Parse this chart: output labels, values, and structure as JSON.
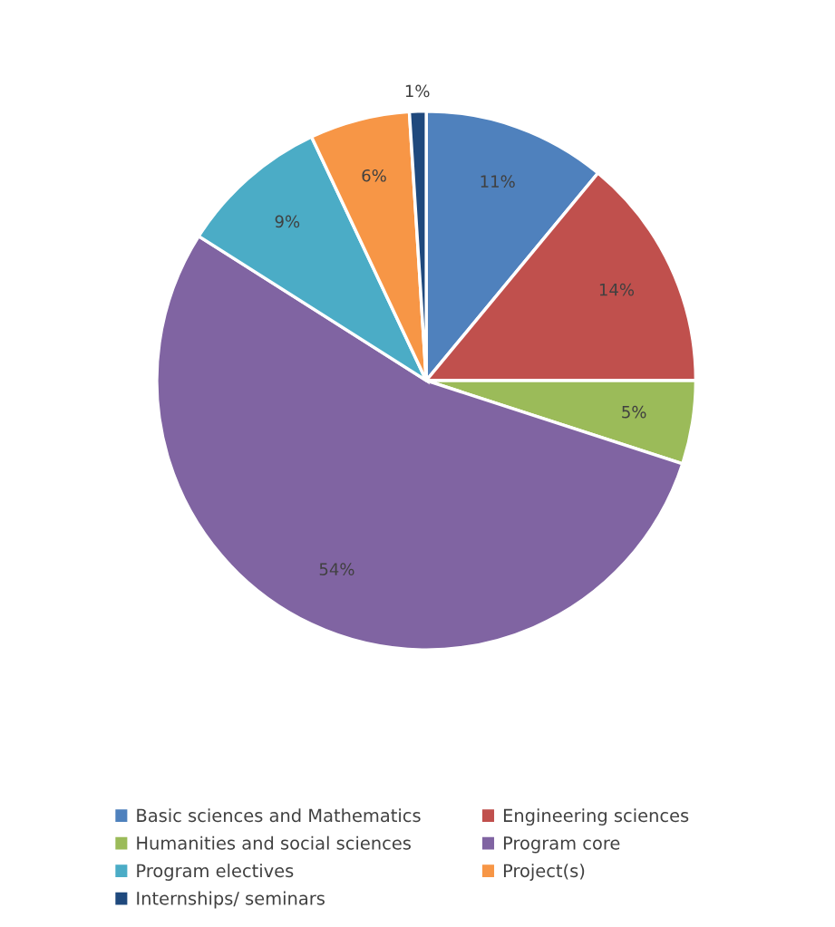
{
  "chart_data": {
    "type": "pie",
    "categories": [
      "Basic sciences and Mathematics",
      "Engineering sciences",
      "Humanities and social sciences",
      "Program core",
      "Program electives",
      "Project(s)",
      "Internships/ seminars"
    ],
    "values": [
      11,
      14,
      5,
      54,
      9,
      6,
      1
    ],
    "colors": [
      "#4f81bd",
      "#c0504d",
      "#9bbb59",
      "#8064a2",
      "#4bacc6",
      "#f79646",
      "#1f497d"
    ],
    "value_labels": [
      "11%",
      "14%",
      "5%",
      "54%",
      "9%",
      "6%",
      "1%"
    ],
    "legend": "bottom"
  }
}
